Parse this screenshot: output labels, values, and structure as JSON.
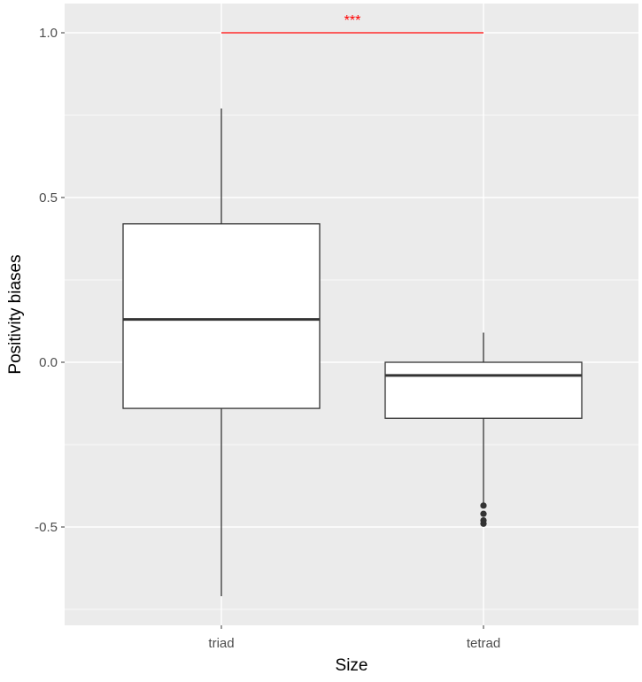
{
  "chart_data": {
    "type": "boxplot",
    "xlabel": "Size",
    "ylabel": "Positivity biases",
    "categories": [
      "triad",
      "tetrad"
    ],
    "ylim": [
      -0.75,
      1.08
    ],
    "yticks": [
      -0.5,
      0.0,
      0.5,
      1.0
    ],
    "ytick_labels": [
      "-0.5",
      "0.0",
      "0.5",
      "1.0"
    ],
    "grid": true,
    "boxes": [
      {
        "category": "triad",
        "whisker_low": -0.71,
        "q1": -0.14,
        "median": 0.13,
        "q3": 0.42,
        "whisker_high": 0.77,
        "outliers": []
      },
      {
        "category": "tetrad",
        "whisker_low": -0.43,
        "q1": -0.17,
        "median": -0.04,
        "q3": 0.0,
        "whisker_high": 0.09,
        "outliers": [
          -0.435,
          -0.46,
          -0.48,
          -0.49
        ]
      }
    ],
    "significance": {
      "from": "triad",
      "to": "tetrad",
      "y": 1.0,
      "label": "***",
      "color": "#ff0000"
    },
    "colors": {
      "panel_bg": "#ebebeb",
      "grid": "#ffffff",
      "box_fill": "#ffffff",
      "box_stroke": "#333333"
    }
  }
}
